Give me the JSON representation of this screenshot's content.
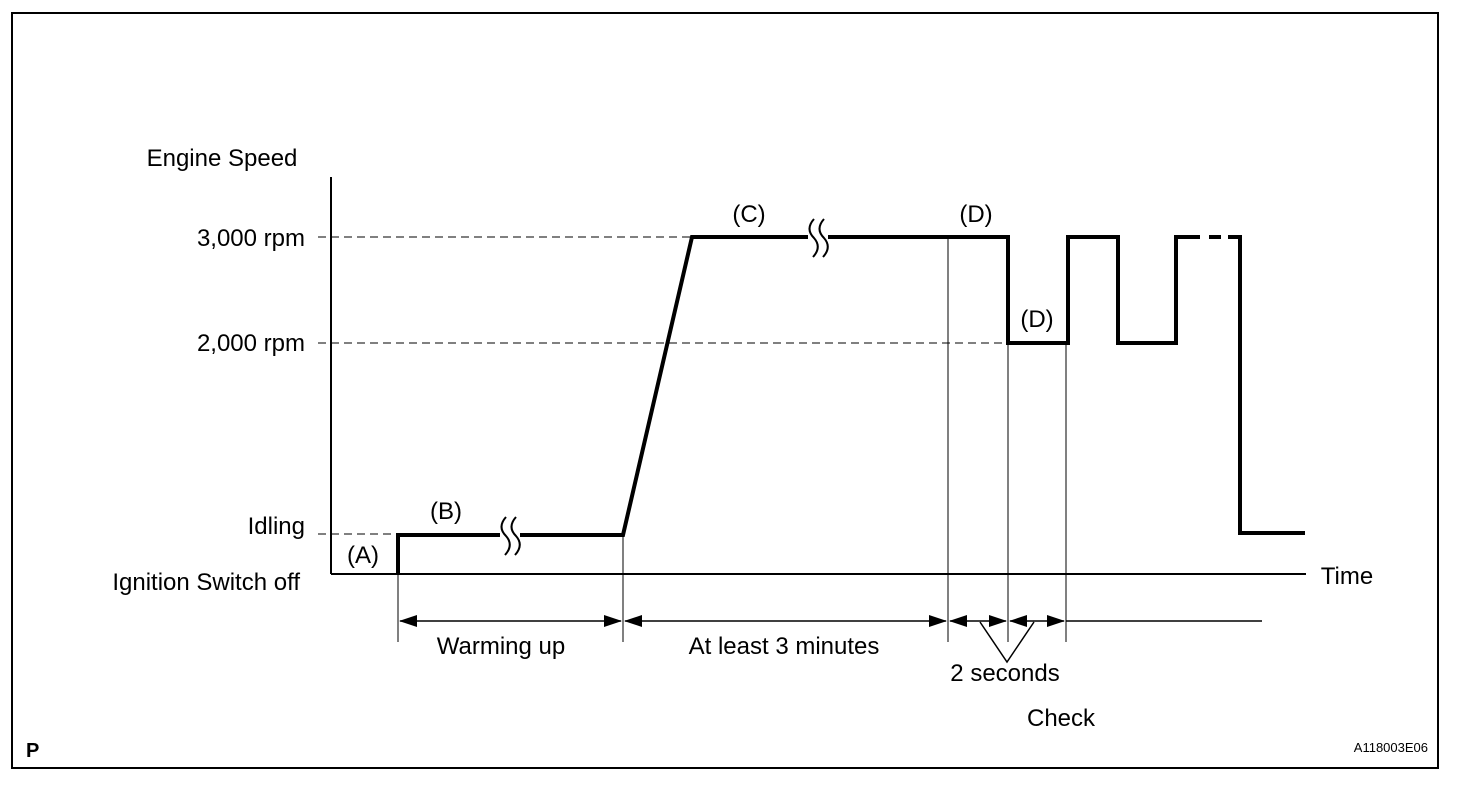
{
  "diagram": {
    "y_axis_title": "Engine Speed",
    "x_axis_title": "Time",
    "levels": {
      "rpm_3000": "3,000 rpm",
      "rpm_2000": "2,000 rpm",
      "idling": "Idling",
      "ignition_off": "Ignition Switch off"
    },
    "steps": {
      "a": "(A)",
      "b": "(B)",
      "c": "(C)",
      "d_top": "(D)",
      "d_low": "(D)"
    },
    "intervals": {
      "warming_up": "Warming up",
      "at_least_3_minutes": "At least 3 minutes",
      "two_seconds": "2 seconds",
      "check": "Check"
    },
    "corner_mark": "P",
    "figure_code": "A118003E06"
  },
  "colors": {
    "line": "#000000",
    "background": "#ffffff"
  }
}
